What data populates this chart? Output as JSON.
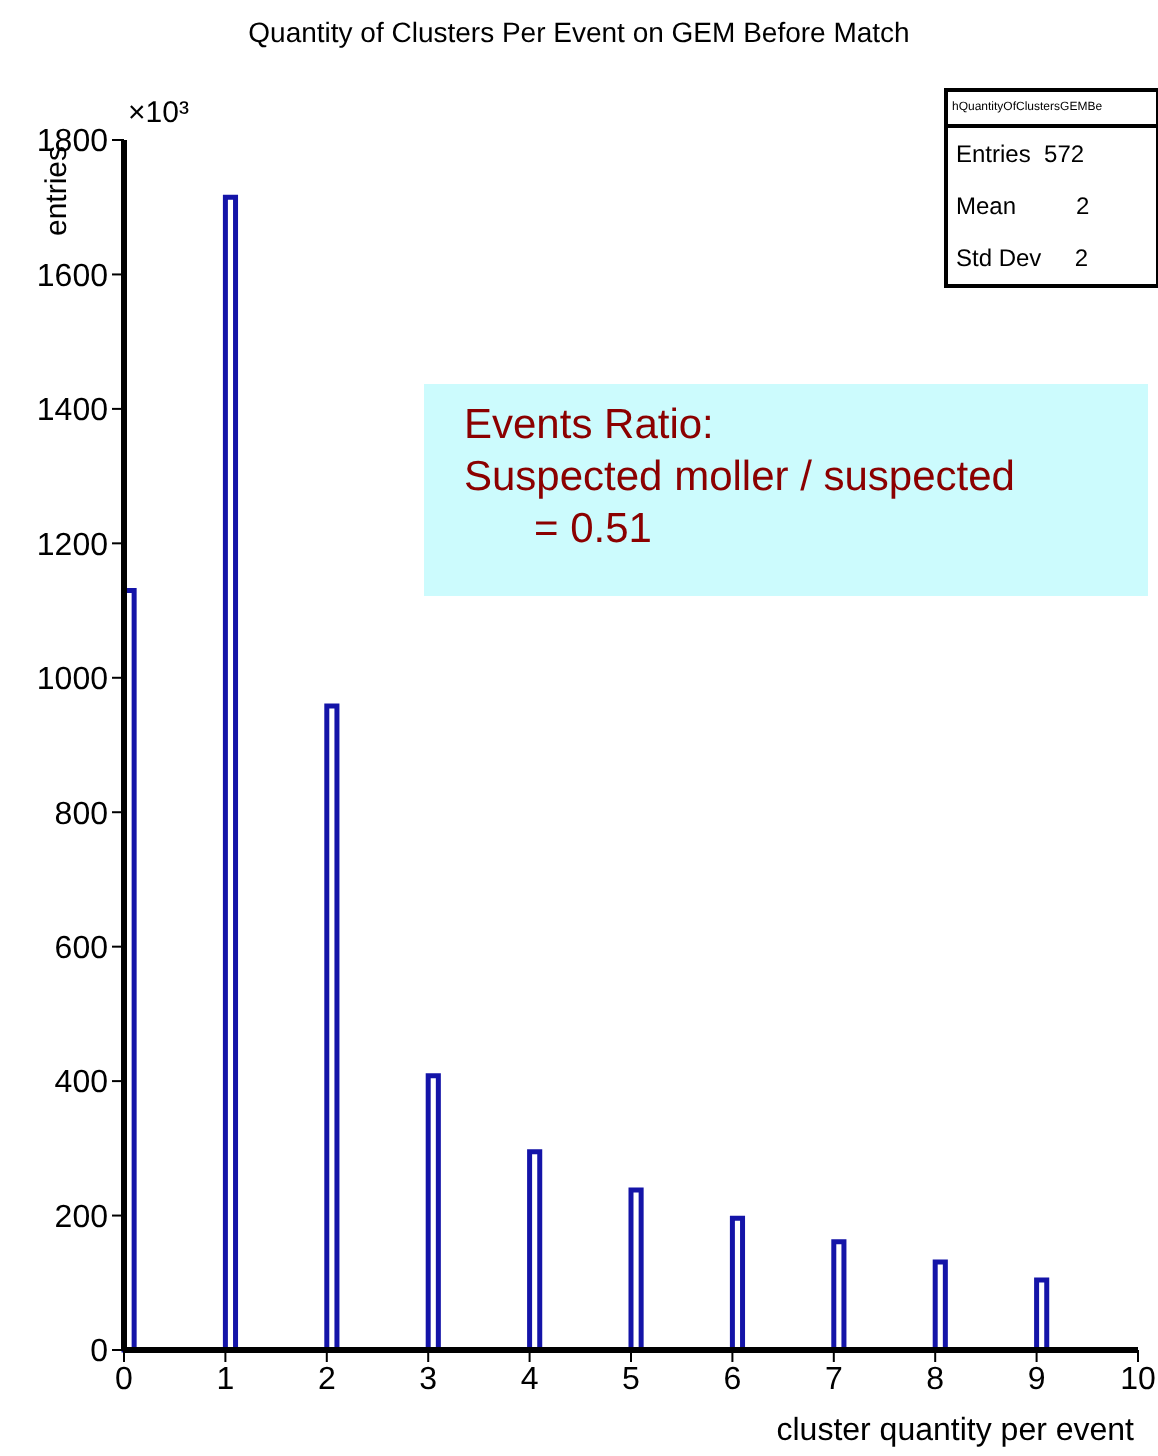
{
  "chart_data": {
    "type": "histogram",
    "title": "Quantity of Clusters Per Event on GEM Before Match",
    "xlabel": "cluster quantity per event",
    "ylabel": "entries",
    "bins": [
      0,
      0.1,
      1,
      1.1,
      2,
      2.1,
      3,
      3.1,
      4,
      4.1,
      5,
      5.1,
      6,
      6.1,
      7,
      7.1,
      8,
      8.1,
      9,
      9.1
    ],
    "values": [
      1130,
      0,
      1715,
      0,
      958,
      0,
      408,
      0,
      295,
      0,
      238,
      0,
      196,
      0,
      161,
      0,
      131,
      0,
      104
    ],
    "color": "#1414a8",
    "xlim": [
      0,
      10
    ],
    "xticks": [
      0,
      1,
      2,
      3,
      4,
      5,
      6,
      7,
      8,
      9,
      10
    ],
    "ylim": [
      0,
      1800
    ],
    "yticks": [
      0,
      200,
      400,
      600,
      800,
      1000,
      1200,
      1400,
      1600,
      1800
    ],
    "annotations": [
      "×10³",
      "hQuantityOfClustersGEMBe",
      "Entries  572",
      "Mean         2",
      "Std Dev     2",
      "Events Ratio:",
      "Suspected moller / suspected",
      "      = 0.51"
    ]
  }
}
